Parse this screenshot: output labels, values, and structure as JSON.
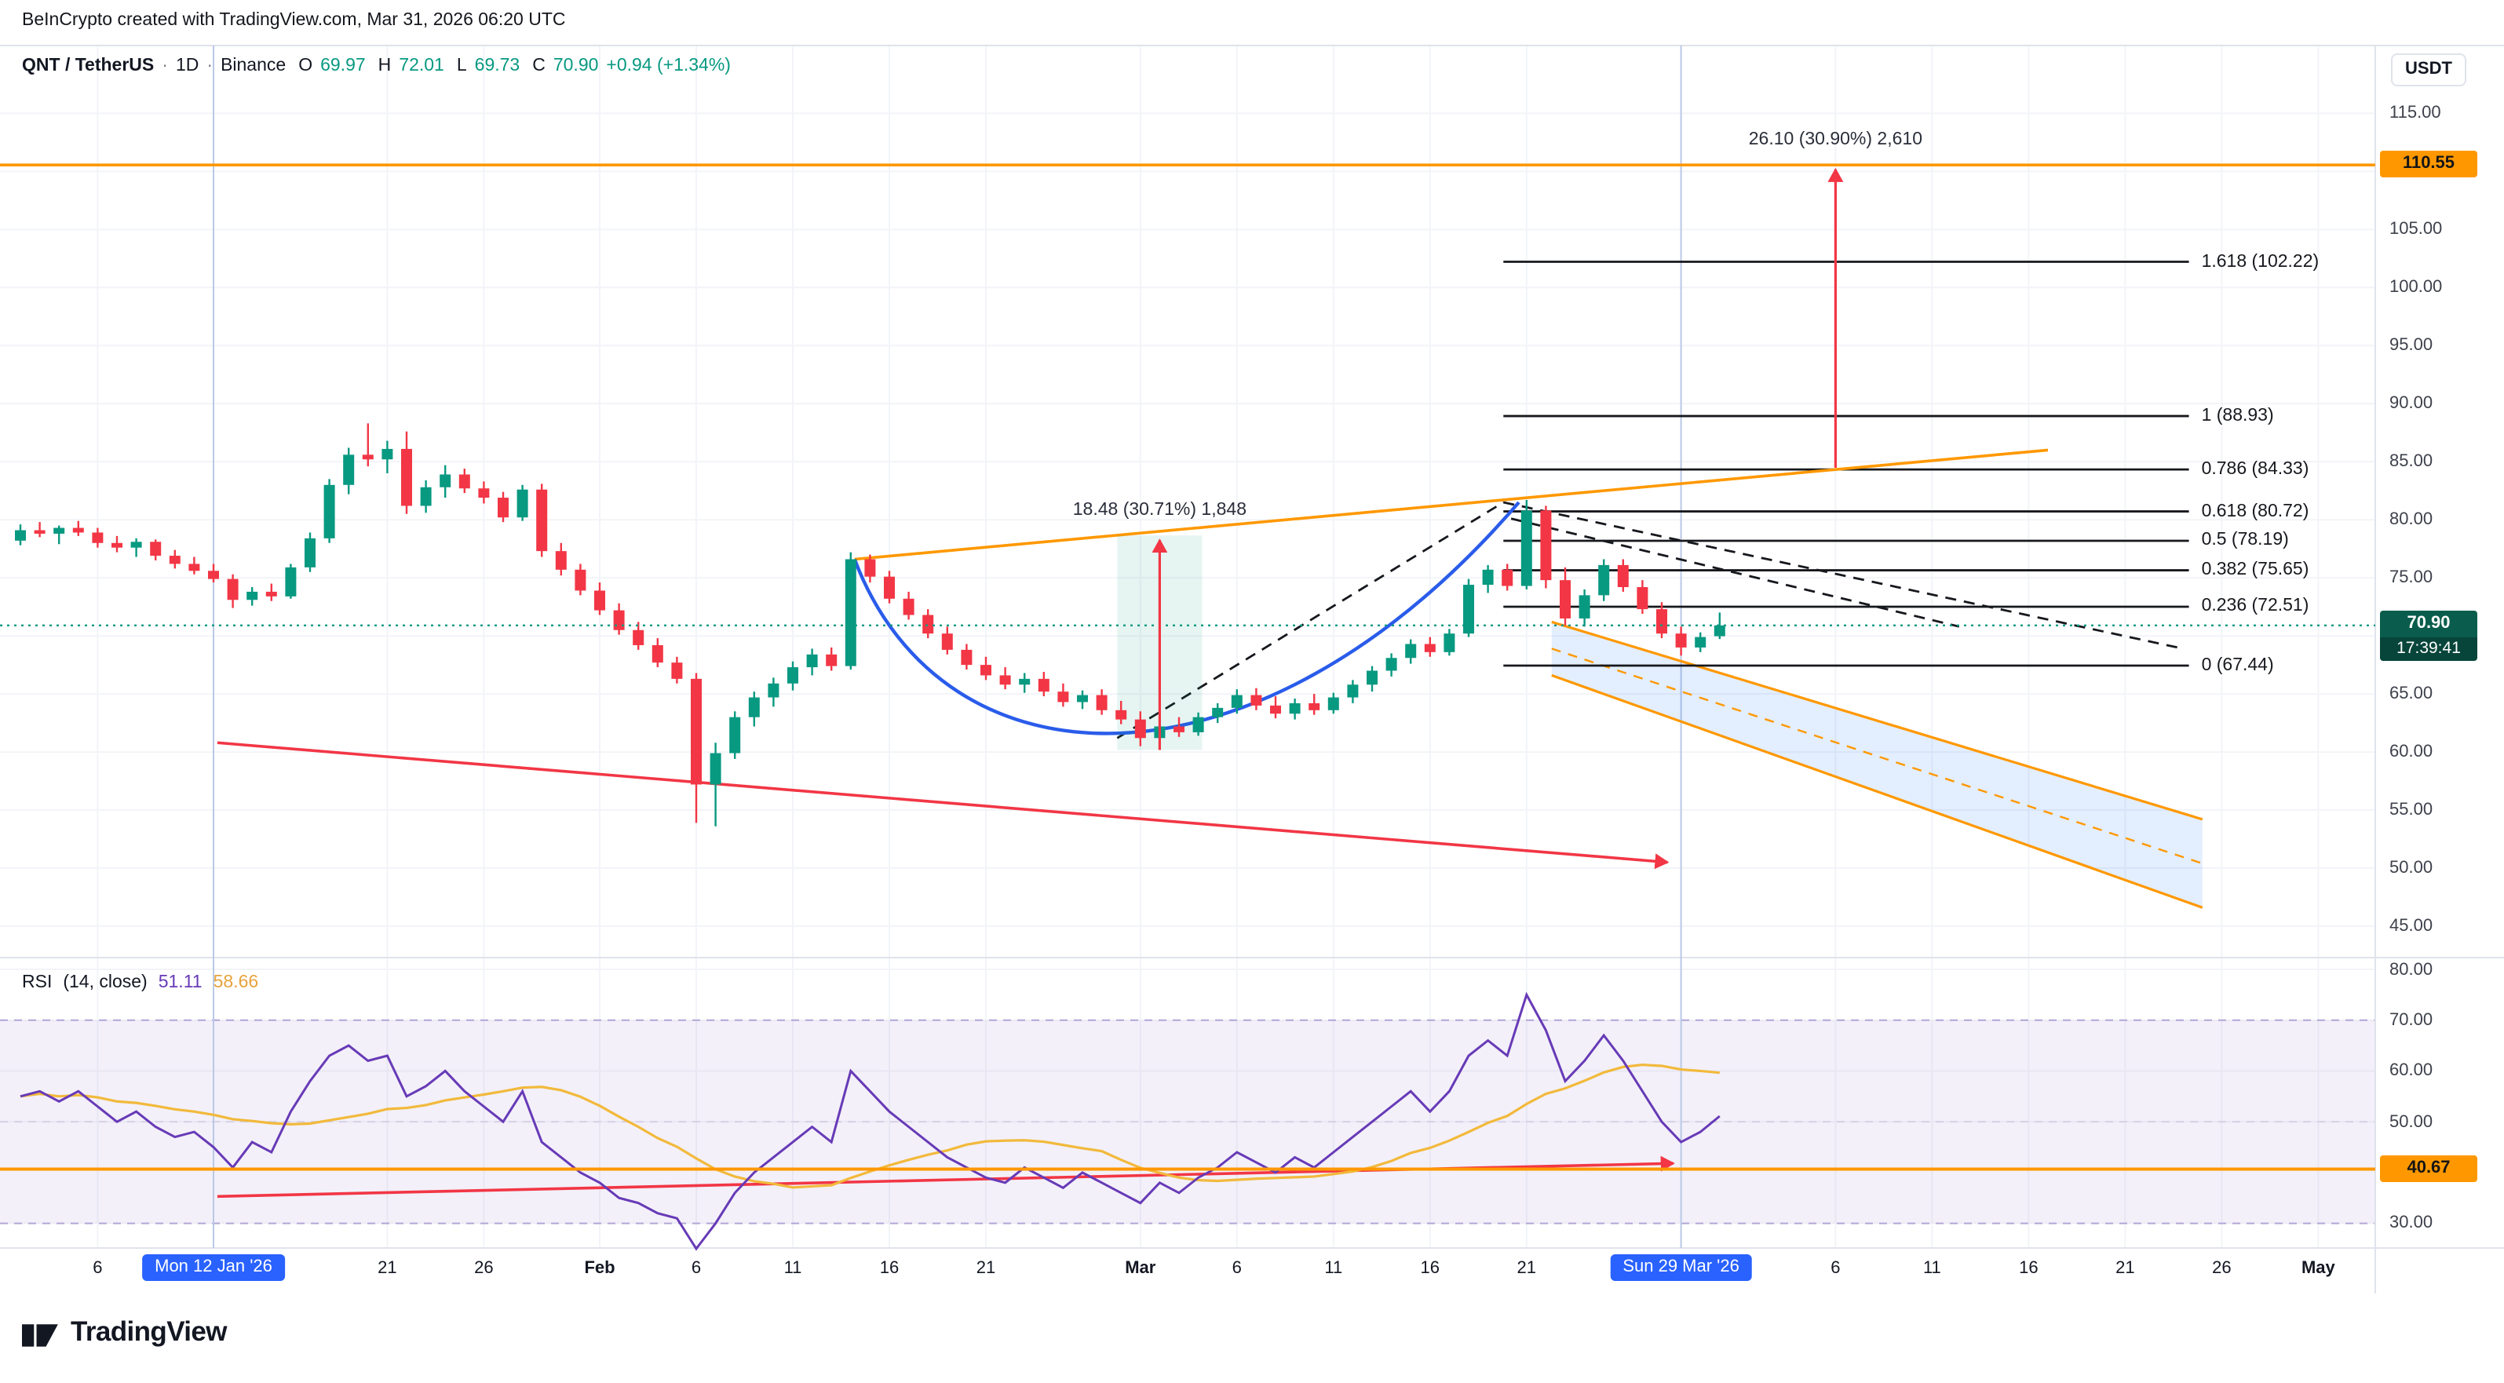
{
  "attribution": "BeInCrypto created with TradingView.com, Mar 31, 2026 06:20 UTC",
  "header": {
    "symbol": "QNT / TetherUS",
    "dot": "·",
    "interval": "1D",
    "exchange": "Binance",
    "ohlc": [
      {
        "k": "O",
        "v": "69.97"
      },
      {
        "k": "H",
        "v": "72.01"
      },
      {
        "k": "L",
        "v": "69.73"
      },
      {
        "k": "C",
        "v": "70.90"
      }
    ],
    "change": "+0.94 (+1.34%)"
  },
  "price_axis": {
    "currency": "USDT"
  },
  "rsi_legend": {
    "title": "RSI",
    "params": "(14, close)",
    "value": "51.11",
    "ma_value": "58.66"
  },
  "logo": {
    "text": "TradingView"
  },
  "chart_data": {
    "type": "candlestick",
    "symbol": "QNT/USDT",
    "interval": "1D",
    "exchange": "Binance",
    "colors": {
      "up": "#089981",
      "down": "#f23645",
      "orange": "#ff9800",
      "red": "#f23645",
      "blue": "#2a5cea",
      "rsi": "#673ab7",
      "rsi_ma": "#f2b93b",
      "grid": "#f2f4f8",
      "frame": "#e0e3eb",
      "vline": "#b9c9e6",
      "badge_blue": "#2962ff",
      "black": "#16181d",
      "green_dotted": "#089981",
      "channel_fill": "rgba(41,120,245,0.13)",
      "measure_fill": "rgba(8,153,129,0.10)",
      "band_fill": "rgba(126,87,194,0.09)"
    },
    "price_axis": {
      "min": 45,
      "max": 115,
      "ticks": [
        115,
        110,
        105,
        100,
        95,
        90,
        85,
        80,
        75,
        70,
        65,
        60,
        55,
        50,
        45
      ]
    },
    "time_axis": {
      "ticks": [
        {
          "label": "6",
          "day": 4
        },
        {
          "label": "21",
          "day": 19
        },
        {
          "label": "26",
          "day": 24
        },
        {
          "label": "Feb",
          "day": 30,
          "major": true
        },
        {
          "label": "6",
          "day": 35
        },
        {
          "label": "11",
          "day": 40
        },
        {
          "label": "16",
          "day": 45
        },
        {
          "label": "21",
          "day": 50
        },
        {
          "label": "Mar",
          "day": 58,
          "major": true
        },
        {
          "label": "6",
          "day": 63
        },
        {
          "label": "11",
          "day": 68
        },
        {
          "label": "16",
          "day": 73
        },
        {
          "label": "21",
          "day": 78
        },
        {
          "label": "6",
          "day": 94
        },
        {
          "label": "11",
          "day": 99
        },
        {
          "label": "16",
          "day": 104
        },
        {
          "label": "21",
          "day": 109
        },
        {
          "label": "26",
          "day": 114
        },
        {
          "label": "May",
          "day": 119,
          "major": true
        }
      ],
      "date_badges": [
        {
          "label": "Mon 12 Jan '26",
          "day": 10
        },
        {
          "label": "Sun 29 Mar '26",
          "day": 86
        }
      ]
    },
    "candles": [
      [
        78.2,
        79.6,
        77.8,
        79.1
      ],
      [
        79.1,
        79.8,
        78.5,
        78.8
      ],
      [
        78.8,
        79.5,
        77.9,
        79.3
      ],
      [
        79.3,
        79.9,
        78.6,
        78.9
      ],
      [
        78.9,
        79.3,
        77.6,
        78.0
      ],
      [
        78.0,
        78.6,
        77.2,
        77.6
      ],
      [
        77.6,
        78.4,
        76.8,
        78.1
      ],
      [
        78.1,
        78.3,
        76.5,
        76.9
      ],
      [
        76.9,
        77.4,
        75.8,
        76.2
      ],
      [
        76.2,
        76.8,
        75.3,
        75.6
      ],
      [
        75.6,
        76.2,
        74.6,
        74.9
      ],
      [
        74.9,
        75.3,
        72.4,
        73.1
      ],
      [
        73.1,
        74.2,
        72.6,
        73.8
      ],
      [
        73.8,
        74.5,
        73.0,
        73.4
      ],
      [
        73.4,
        76.2,
        73.2,
        75.9
      ],
      [
        75.9,
        78.9,
        75.5,
        78.4
      ],
      [
        78.4,
        83.5,
        78.0,
        83.0
      ],
      [
        83.0,
        86.2,
        82.2,
        85.6
      ],
      [
        85.6,
        88.3,
        84.6,
        85.2
      ],
      [
        85.2,
        86.8,
        84.0,
        86.1
      ],
      [
        86.1,
        87.6,
        80.5,
        81.2
      ],
      [
        81.2,
        83.4,
        80.6,
        82.8
      ],
      [
        82.8,
        84.7,
        81.9,
        83.9
      ],
      [
        83.9,
        84.4,
        82.3,
        82.7
      ],
      [
        82.7,
        83.3,
        81.4,
        81.9
      ],
      [
        81.9,
        82.4,
        79.8,
        80.2
      ],
      [
        80.2,
        83.0,
        79.9,
        82.6
      ],
      [
        82.6,
        83.1,
        76.8,
        77.3
      ],
      [
        77.3,
        78.0,
        75.2,
        75.7
      ],
      [
        75.7,
        76.2,
        73.5,
        73.9
      ],
      [
        73.9,
        74.6,
        71.8,
        72.2
      ],
      [
        72.2,
        72.8,
        70.1,
        70.5
      ],
      [
        70.5,
        71.2,
        68.8,
        69.2
      ],
      [
        69.2,
        69.8,
        67.3,
        67.7
      ],
      [
        67.7,
        68.2,
        65.9,
        66.3
      ],
      [
        66.3,
        66.8,
        53.9,
        57.2
      ],
      [
        57.2,
        60.8,
        53.6,
        59.9
      ],
      [
        59.9,
        63.5,
        59.4,
        63.0
      ],
      [
        63.0,
        65.2,
        62.2,
        64.7
      ],
      [
        64.7,
        66.4,
        63.9,
        65.9
      ],
      [
        65.9,
        67.8,
        65.3,
        67.3
      ],
      [
        67.3,
        68.9,
        66.6,
        68.4
      ],
      [
        68.4,
        69.0,
        67.0,
        67.4
      ],
      [
        67.4,
        77.2,
        67.1,
        76.6
      ],
      [
        76.6,
        77.0,
        74.6,
        75.1
      ],
      [
        75.1,
        75.6,
        72.8,
        73.2
      ],
      [
        73.2,
        73.8,
        71.4,
        71.8
      ],
      [
        71.8,
        72.3,
        69.8,
        70.2
      ],
      [
        70.2,
        70.8,
        68.4,
        68.8
      ],
      [
        68.8,
        69.3,
        67.1,
        67.5
      ],
      [
        67.5,
        68.2,
        66.2,
        66.6
      ],
      [
        66.6,
        67.3,
        65.4,
        65.8
      ],
      [
        65.8,
        66.8,
        65.1,
        66.3
      ],
      [
        66.3,
        66.9,
        64.8,
        65.2
      ],
      [
        65.2,
        65.9,
        63.9,
        64.3
      ],
      [
        64.3,
        65.3,
        63.7,
        64.9
      ],
      [
        64.9,
        65.4,
        63.2,
        63.6
      ],
      [
        63.6,
        64.4,
        62.4,
        62.8
      ],
      [
        62.8,
        63.5,
        60.5,
        61.2
      ],
      [
        61.2,
        62.6,
        60.8,
        62.2
      ],
      [
        62.2,
        63.0,
        61.3,
        61.7
      ],
      [
        61.7,
        63.4,
        61.4,
        63.0
      ],
      [
        63.0,
        64.2,
        62.5,
        63.8
      ],
      [
        63.8,
        65.4,
        63.3,
        64.9
      ],
      [
        64.9,
        65.5,
        63.6,
        64.0
      ],
      [
        64.0,
        64.8,
        62.9,
        63.3
      ],
      [
        63.3,
        64.6,
        62.8,
        64.2
      ],
      [
        64.2,
        65.0,
        63.2,
        63.6
      ],
      [
        63.6,
        65.1,
        63.3,
        64.7
      ],
      [
        64.7,
        66.2,
        64.2,
        65.8
      ],
      [
        65.8,
        67.4,
        65.2,
        67.0
      ],
      [
        67.0,
        68.5,
        66.5,
        68.1
      ],
      [
        68.1,
        69.7,
        67.6,
        69.3
      ],
      [
        69.3,
        69.9,
        68.2,
        68.6
      ],
      [
        68.6,
        70.6,
        68.3,
        70.2
      ],
      [
        70.2,
        74.9,
        69.9,
        74.4
      ],
      [
        74.4,
        76.1,
        73.7,
        75.7
      ],
      [
        75.7,
        76.2,
        73.9,
        74.3
      ],
      [
        74.3,
        81.7,
        74.0,
        80.8
      ],
      [
        80.8,
        81.2,
        74.1,
        74.8
      ],
      [
        74.8,
        75.9,
        70.9,
        71.5
      ],
      [
        71.5,
        74.0,
        70.8,
        73.5
      ],
      [
        73.5,
        76.6,
        73.0,
        76.1
      ],
      [
        76.1,
        76.6,
        73.8,
        74.2
      ],
      [
        74.2,
        74.8,
        71.9,
        72.3
      ],
      [
        72.3,
        72.9,
        69.8,
        70.2
      ],
      [
        70.2,
        70.8,
        68.3,
        69.0
      ],
      [
        69.0,
        70.3,
        68.6,
        69.9
      ],
      [
        69.97,
        72.01,
        69.73,
        70.9
      ]
    ],
    "last": {
      "price": "70.90",
      "countdown": "17:39:41"
    },
    "current_price": 70.9,
    "horizontal_lines": [
      {
        "price": 110.55,
        "badge": "110.55",
        "color": "orange",
        "style": "solid"
      },
      {
        "price": 70.9,
        "color": "green",
        "style": "dotted"
      }
    ],
    "fib": {
      "d1": 76.8,
      "d2": 112.3,
      "levels": [
        {
          "label": "1.618 (102.22)",
          "price": 102.22
        },
        {
          "label": "1 (88.93)",
          "price": 88.93
        },
        {
          "label": "0.786 (84.33)",
          "price": 84.33
        },
        {
          "label": "0.618 (80.72)",
          "price": 80.72
        },
        {
          "label": "0.5 (78.19)",
          "price": 78.19
        },
        {
          "label": "0.382 (75.65)",
          "price": 75.65
        },
        {
          "label": "0.236 (72.51)",
          "price": 72.51
        },
        {
          "label": "0 (67.44)",
          "price": 67.44
        }
      ]
    },
    "trendlines": [
      {
        "name": "descending-support",
        "pane": "price",
        "d1": 10.2,
        "p1": 60.8,
        "d2": 85.3,
        "p2": 50.5,
        "color": "red",
        "arrow": true
      },
      {
        "name": "cup-neckline",
        "pane": "price",
        "d1": 43.2,
        "p1": 76.6,
        "d2": 105,
        "p2": 86.0,
        "color": "orange"
      },
      {
        "name": "cup-rise",
        "pane": "price",
        "d1": 56.8,
        "p1": 61.2,
        "d2": 76.8,
        "p2": 81.5,
        "color": "black",
        "dash": true
      },
      {
        "name": "breakdown-a",
        "pane": "price",
        "d1": 76.8,
        "p1": 81.5,
        "d2": 112,
        "p2": 68.9,
        "color": "black",
        "dash": true
      },
      {
        "name": "breakdown-b",
        "pane": "price",
        "d1": 77.2,
        "p1": 80.1,
        "d2": 100.4,
        "p2": 70.8,
        "color": "black",
        "dash": true
      },
      {
        "name": "rsi-support",
        "pane": "rsi",
        "d1": 10.2,
        "p1": 35.3,
        "d2": 85.6,
        "p2": 41.8,
        "color": "red",
        "arrow": true
      }
    ],
    "channel": {
      "top": {
        "d1": 79.3,
        "p1": 71.2,
        "d2": 113,
        "p2": 54.2
      },
      "bottom": {
        "d1": 79.3,
        "p1": 66.6,
        "d2": 113,
        "p2": 46.6
      }
    },
    "cup": {
      "d1": 43.2,
      "p1": 76.6,
      "d2": 77.6,
      "p2": 81.5
    },
    "measures": [
      {
        "name": "cup-depth",
        "day": 59,
        "from_price": 60.17,
        "to_price": 78.65,
        "label": "18.48 (30.71%) 1,848",
        "box": {
          "d1": 56.8,
          "d2": 61.2
        }
      },
      {
        "name": "upside-projection",
        "day": 94,
        "from_price": 84.47,
        "to_price": 110.57,
        "label": "26.10 (30.90%) 2,610"
      }
    ],
    "rsi": {
      "length": 14,
      "source": "close",
      "value": "51.11",
      "ma_value": "58.66",
      "band": [
        30,
        70
      ],
      "mid": 50,
      "ticks": [
        80,
        70,
        60,
        50,
        30
      ],
      "hline": {
        "value": 40.67,
        "badge": "40.67"
      },
      "values": [
        55,
        56,
        54,
        56,
        53,
        50,
        52,
        49,
        47,
        48,
        45,
        41,
        46,
        44,
        52,
        58,
        63,
        65,
        62,
        63,
        55,
        57,
        60,
        56,
        53,
        50,
        56,
        46,
        43,
        40,
        38,
        35,
        34,
        32,
        31,
        25,
        30,
        36,
        40,
        43,
        46,
        49,
        46,
        60,
        56,
        52,
        49,
        46,
        43,
        41,
        39,
        38,
        41,
        39,
        37,
        40,
        38,
        36,
        34,
        38,
        36,
        39,
        41,
        44,
        42,
        40,
        43,
        41,
        44,
        47,
        50,
        53,
        56,
        52,
        56,
        63,
        66,
        63,
        75,
        68,
        58,
        62,
        67,
        62,
        56,
        50,
        46,
        48,
        51.11
      ]
    }
  }
}
